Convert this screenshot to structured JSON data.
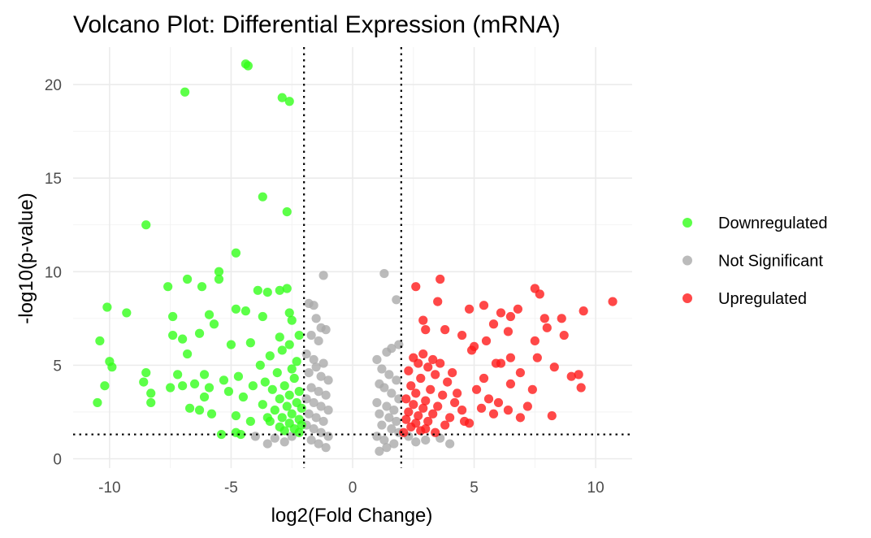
{
  "chart_data": {
    "type": "scatter",
    "title": "Volcano Plot: Differential Expression (mRNA)",
    "xlabel": "log2(Fold Change)",
    "ylabel": "-log10(p-value)",
    "xlim": [
      -11.5,
      11.5
    ],
    "ylim": [
      -0.5,
      22
    ],
    "x_ticks": [
      -10,
      -5,
      0,
      5,
      10
    ],
    "x_tick_labels": [
      "-10",
      "-5",
      "0",
      "5",
      "10"
    ],
    "y_ticks": [
      0,
      5,
      10,
      15,
      20
    ],
    "y_tick_labels": [
      "0",
      "5",
      "10",
      "15",
      "20"
    ],
    "grid": true,
    "legend_position": "right",
    "thresholds": {
      "log2fc": [
        -2,
        2
      ],
      "neg_log10_p": 1.3
    },
    "series": [
      {
        "name": "Downregulated",
        "color": "#33ff1a",
        "points": [
          [
            -4.4,
            21.1
          ],
          [
            -4.3,
            21.0
          ],
          [
            -6.9,
            19.6
          ],
          [
            -2.9,
            19.3
          ],
          [
            -2.6,
            19.1
          ],
          [
            -3.7,
            14.0
          ],
          [
            -2.7,
            13.2
          ],
          [
            -8.5,
            12.5
          ],
          [
            -4.8,
            11.0
          ],
          [
            -5.5,
            10.0
          ],
          [
            -6.8,
            9.6
          ],
          [
            -5.5,
            9.6
          ],
          [
            -7.6,
            9.2
          ],
          [
            -6.2,
            9.2
          ],
          [
            -3.9,
            9.0
          ],
          [
            -3.5,
            8.9
          ],
          [
            -3.0,
            9.0
          ],
          [
            -2.7,
            9.1
          ],
          [
            -10.1,
            8.1
          ],
          [
            -9.3,
            7.8
          ],
          [
            -7.4,
            7.6
          ],
          [
            -5.9,
            7.7
          ],
          [
            -4.8,
            8.0
          ],
          [
            -4.4,
            7.9
          ],
          [
            -3.7,
            7.6
          ],
          [
            -2.6,
            7.8
          ],
          [
            -2.5,
            7.4
          ],
          [
            -5.7,
            7.2
          ],
          [
            -6.3,
            6.7
          ],
          [
            -7.4,
            6.6
          ],
          [
            -7.0,
            6.4
          ],
          [
            -10.4,
            6.3
          ],
          [
            -2.2,
            6.6
          ],
          [
            -3.0,
            6.5
          ],
          [
            -4.2,
            6.2
          ],
          [
            -5.0,
            6.1
          ],
          [
            -6.8,
            5.6
          ],
          [
            -10.0,
            5.2
          ],
          [
            -9.9,
            4.9
          ],
          [
            -8.5,
            4.6
          ],
          [
            -7.2,
            4.5
          ],
          [
            -6.1,
            4.5
          ],
          [
            -5.3,
            4.2
          ],
          [
            -4.7,
            4.4
          ],
          [
            -10.2,
            3.9
          ],
          [
            -8.6,
            4.1
          ],
          [
            -7.5,
            3.8
          ],
          [
            -7.0,
            3.9
          ],
          [
            -6.5,
            4.0
          ],
          [
            -5.9,
            3.8
          ],
          [
            -4.1,
            3.9
          ],
          [
            -8.3,
            3.5
          ],
          [
            -6.1,
            3.3
          ],
          [
            -5.1,
            3.6
          ],
          [
            -10.5,
            3.0
          ],
          [
            -8.3,
            3.0
          ],
          [
            -6.7,
            2.7
          ],
          [
            -6.3,
            2.6
          ],
          [
            -5.8,
            2.4
          ],
          [
            -4.8,
            2.3
          ],
          [
            -4.2,
            2.0
          ],
          [
            -3.5,
            2.2
          ],
          [
            -5.4,
            1.3
          ],
          [
            -4.8,
            1.4
          ],
          [
            -4.6,
            1.3
          ],
          [
            -2.6,
            6.1
          ],
          [
            -2.9,
            5.8
          ],
          [
            -3.4,
            5.5
          ],
          [
            -2.3,
            5.2
          ],
          [
            -3.8,
            5.0
          ],
          [
            -2.5,
            4.8
          ],
          [
            -3.1,
            4.6
          ],
          [
            -2.4,
            4.3
          ],
          [
            -3.6,
            4.1
          ],
          [
            -2.8,
            3.9
          ],
          [
            -3.3,
            3.7
          ],
          [
            -2.2,
            3.6
          ],
          [
            -2.6,
            3.4
          ],
          [
            -4.5,
            3.3
          ],
          [
            -3.0,
            3.2
          ],
          [
            -2.3,
            3.0
          ],
          [
            -3.7,
            2.9
          ],
          [
            -2.7,
            2.8
          ],
          [
            -2.1,
            2.7
          ],
          [
            -3.2,
            2.6
          ],
          [
            -2.5,
            2.4
          ],
          [
            -2.9,
            2.2
          ],
          [
            -2.2,
            2.1
          ],
          [
            -3.4,
            2.0
          ],
          [
            -2.6,
            1.9
          ],
          [
            -2.1,
            1.8
          ],
          [
            -3.0,
            1.7
          ],
          [
            -2.4,
            1.6
          ],
          [
            -2.8,
            1.5
          ],
          [
            -2.2,
            1.4
          ]
        ]
      },
      {
        "name": "Not Significant",
        "color": "#aaaaaa",
        "points": [
          [
            -1.2,
            9.8
          ],
          [
            1.3,
            9.9
          ],
          [
            1.8,
            8.5
          ],
          [
            -1.8,
            8.3
          ],
          [
            -1.6,
            8.2
          ],
          [
            -1.5,
            7.5
          ],
          [
            -1.3,
            7.0
          ],
          [
            -1.1,
            6.9
          ],
          [
            -1.7,
            6.6
          ],
          [
            -1.4,
            6.3
          ],
          [
            1.9,
            6.1
          ],
          [
            1.6,
            5.9
          ],
          [
            1.4,
            5.7
          ],
          [
            -1.9,
            5.6
          ],
          [
            -1.6,
            5.3
          ],
          [
            -1.2,
            5.1
          ],
          [
            -1.5,
            4.9
          ],
          [
            -1.8,
            4.6
          ],
          [
            -1.3,
            4.4
          ],
          [
            -1.0,
            4.2
          ],
          [
            1.0,
            5.3
          ],
          [
            1.2,
            4.8
          ],
          [
            1.5,
            4.5
          ],
          [
            1.8,
            4.2
          ],
          [
            1.1,
            4.0
          ],
          [
            -1.7,
            3.8
          ],
          [
            -1.4,
            3.6
          ],
          [
            -1.1,
            3.4
          ],
          [
            -1.9,
            3.2
          ],
          [
            -1.6,
            3.0
          ],
          [
            -1.3,
            2.8
          ],
          [
            -1.0,
            2.6
          ],
          [
            -1.8,
            2.4
          ],
          [
            -1.5,
            2.2
          ],
          [
            -1.2,
            2.0
          ],
          [
            1.3,
            3.8
          ],
          [
            1.6,
            3.5
          ],
          [
            1.9,
            3.2
          ],
          [
            1.0,
            3.0
          ],
          [
            1.4,
            2.8
          ],
          [
            1.7,
            2.6
          ],
          [
            1.1,
            2.4
          ],
          [
            1.5,
            2.2
          ],
          [
            1.8,
            2.0
          ],
          [
            1.2,
            1.8
          ],
          [
            -1.9,
            1.8
          ],
          [
            -1.6,
            1.6
          ],
          [
            -1.3,
            1.4
          ],
          [
            -1.0,
            1.2
          ],
          [
            -1.7,
            1.0
          ],
          [
            -1.4,
            0.8
          ],
          [
            -1.1,
            0.6
          ],
          [
            1.6,
            1.6
          ],
          [
            1.9,
            1.4
          ],
          [
            1.0,
            1.2
          ],
          [
            1.3,
            1.0
          ],
          [
            1.7,
            0.8
          ],
          [
            1.4,
            0.6
          ],
          [
            1.1,
            0.4
          ],
          [
            -2.5,
            1.2
          ],
          [
            -3.2,
            1.1
          ],
          [
            -3.5,
            0.8
          ],
          [
            -2.8,
            0.9
          ],
          [
            -4.0,
            1.2
          ],
          [
            2.3,
            1.2
          ],
          [
            3.0,
            1.0
          ],
          [
            3.6,
            1.1
          ],
          [
            4.0,
            0.8
          ],
          [
            2.6,
            0.9
          ]
        ]
      },
      {
        "name": "Upregulated",
        "color": "#ff1a1a",
        "points": [
          [
            10.7,
            8.4
          ],
          [
            9.5,
            7.9
          ],
          [
            7.5,
            9.1
          ],
          [
            7.7,
            8.8
          ],
          [
            2.6,
            9.2
          ],
          [
            3.6,
            9.6
          ],
          [
            5.4,
            8.2
          ],
          [
            6.1,
            7.8
          ],
          [
            6.8,
            8.0
          ],
          [
            8.6,
            7.5
          ],
          [
            4.8,
            8.0
          ],
          [
            3.5,
            8.4
          ],
          [
            2.9,
            7.4
          ],
          [
            6.5,
            7.6
          ],
          [
            7.9,
            7.5
          ],
          [
            5.8,
            7.2
          ],
          [
            8.0,
            7.0
          ],
          [
            3.0,
            6.9
          ],
          [
            3.8,
            6.9
          ],
          [
            8.7,
            6.6
          ],
          [
            4.5,
            6.6
          ],
          [
            5.5,
            6.3
          ],
          [
            6.4,
            6.8
          ],
          [
            7.5,
            6.3
          ],
          [
            5.0,
            6.0
          ],
          [
            4.9,
            5.8
          ],
          [
            6.5,
            5.4
          ],
          [
            5.9,
            5.1
          ],
          [
            6.1,
            5.1
          ],
          [
            7.6,
            5.4
          ],
          [
            8.3,
            4.9
          ],
          [
            9.0,
            4.4
          ],
          [
            9.3,
            4.5
          ],
          [
            6.9,
            4.6
          ],
          [
            5.4,
            4.3
          ],
          [
            4.1,
            4.6
          ],
          [
            3.6,
            5.1
          ],
          [
            6.5,
            4.0
          ],
          [
            9.4,
            3.8
          ],
          [
            7.4,
            3.7
          ],
          [
            5.1,
            3.7
          ],
          [
            8.2,
            2.3
          ],
          [
            6.4,
            2.6
          ],
          [
            6.9,
            2.2
          ],
          [
            7.2,
            2.8
          ],
          [
            5.3,
            2.7
          ],
          [
            2.5,
            5.4
          ],
          [
            2.7,
            5.1
          ],
          [
            3.1,
            4.9
          ],
          [
            2.3,
            4.7
          ],
          [
            3.4,
            4.5
          ],
          [
            2.8,
            4.3
          ],
          [
            3.9,
            4.1
          ],
          [
            2.4,
            3.9
          ],
          [
            3.2,
            3.7
          ],
          [
            2.6,
            3.5
          ],
          [
            3.7,
            3.4
          ],
          [
            2.2,
            3.2
          ],
          [
            3.0,
            3.1
          ],
          [
            4.2,
            3.0
          ],
          [
            2.5,
            2.9
          ],
          [
            3.5,
            2.8
          ],
          [
            2.9,
            2.7
          ],
          [
            4.5,
            2.6
          ],
          [
            2.3,
            2.5
          ],
          [
            3.3,
            2.4
          ],
          [
            2.7,
            2.3
          ],
          [
            4.0,
            2.2
          ],
          [
            2.2,
            2.1
          ],
          [
            3.1,
            2.0
          ],
          [
            2.6,
            1.9
          ],
          [
            3.8,
            1.8
          ],
          [
            2.4,
            1.7
          ],
          [
            3.0,
            1.6
          ],
          [
            2.8,
            1.5
          ],
          [
            3.4,
            1.4
          ],
          [
            2.1,
            1.4
          ],
          [
            4.6,
            2.0
          ],
          [
            5.6,
            3.2
          ],
          [
            4.3,
            3.5
          ],
          [
            5.8,
            2.4
          ],
          [
            4.8,
            1.9
          ],
          [
            6.0,
            3.0
          ],
          [
            3.3,
            5.3
          ],
          [
            2.9,
            5.6
          ]
        ]
      }
    ]
  }
}
